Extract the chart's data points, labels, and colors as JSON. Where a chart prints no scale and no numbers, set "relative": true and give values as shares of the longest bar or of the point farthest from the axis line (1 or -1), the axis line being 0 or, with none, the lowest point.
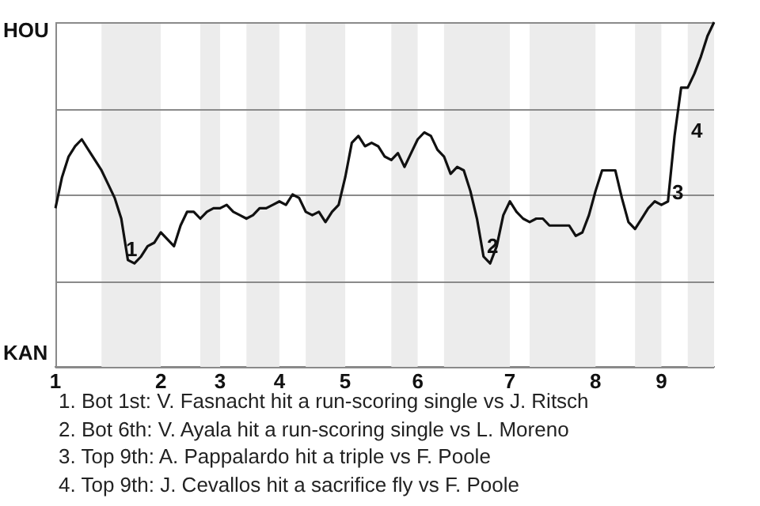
{
  "chart_data": {
    "type": "line",
    "color": "#111111",
    "marker": "none",
    "line_style": "solid",
    "relative": true,
    "categories": [
      "1",
      null,
      null,
      null,
      null,
      null,
      null,
      null,
      null,
      null,
      null,
      null,
      null,
      null,
      null,
      null,
      "2",
      null,
      null,
      null,
      null,
      null,
      null,
      null,
      null,
      "3",
      null,
      null,
      null,
      null,
      null,
      null,
      null,
      null,
      "4",
      null,
      null,
      null,
      null,
      null,
      null,
      null,
      null,
      null,
      "5",
      null,
      null,
      null,
      null,
      null,
      null,
      null,
      null,
      null,
      null,
      "6",
      null,
      null,
      null,
      null,
      null,
      null,
      null,
      null,
      null,
      null,
      null,
      null,
      null,
      "7",
      null,
      null,
      null,
      null,
      null,
      null,
      null,
      null,
      null,
      null,
      null,
      null,
      "8",
      null,
      null,
      null,
      null,
      null,
      null,
      null,
      null,
      null,
      "9",
      null,
      null,
      null,
      null,
      null,
      null,
      null,
      null
    ],
    "values": [
      0.46,
      0.55,
      0.61,
      0.64,
      0.66,
      0.63,
      0.6,
      0.57,
      0.53,
      0.49,
      0.43,
      0.31,
      0.3,
      0.32,
      0.35,
      0.36,
      0.39,
      0.37,
      0.35,
      0.41,
      0.45,
      0.45,
      0.43,
      0.45,
      0.46,
      0.46,
      0.47,
      0.45,
      0.44,
      0.43,
      0.44,
      0.46,
      0.46,
      0.47,
      0.48,
      0.47,
      0.5,
      0.49,
      0.45,
      0.44,
      0.45,
      0.42,
      0.45,
      0.47,
      0.55,
      0.65,
      0.67,
      0.64,
      0.65,
      0.64,
      0.61,
      0.6,
      0.62,
      0.58,
      0.62,
      0.66,
      0.68,
      0.67,
      0.63,
      0.61,
      0.56,
      0.58,
      0.57,
      0.51,
      0.43,
      0.32,
      0.3,
      0.35,
      0.44,
      0.48,
      0.45,
      0.43,
      0.42,
      0.43,
      0.43,
      0.41,
      0.41,
      0.41,
      0.41,
      0.38,
      0.39,
      0.44,
      0.51,
      0.57,
      0.57,
      0.57,
      0.49,
      0.42,
      0.4,
      0.43,
      0.46,
      0.48,
      0.47,
      0.48,
      0.67,
      0.81,
      0.81,
      0.85,
      0.9,
      0.96,
      1.0
    ],
    "ref_lines": [
      {
        "axis": "y",
        "value": 1,
        "label": "HOU",
        "color": "#8a8a8a"
      },
      {
        "axis": "y",
        "value": 0.75,
        "color": "#8a8a8a"
      },
      {
        "axis": "y",
        "value": 0.5,
        "color": "#8a8a8a"
      },
      {
        "axis": "y",
        "value": 0.25,
        "color": "#8a8a8a"
      },
      {
        "axis": "y",
        "value": 0,
        "label": "KAN",
        "color": "#8a8a8a"
      }
    ],
    "annotations": [
      "1",
      "2",
      "3",
      "4",
      "1. Bot 1st: V. Fasnacht hit a run-scoring single vs J. Ritsch",
      "2. Bot 6th: V. Ayala hit a run-scoring single vs L. Moreno",
      "3. Top 9th: A. Pappalardo hit a triple vs F. Poole",
      "4. Top 9th: J. Cevallos hit a sacrifice fly vs F. Poole"
    ]
  }
}
